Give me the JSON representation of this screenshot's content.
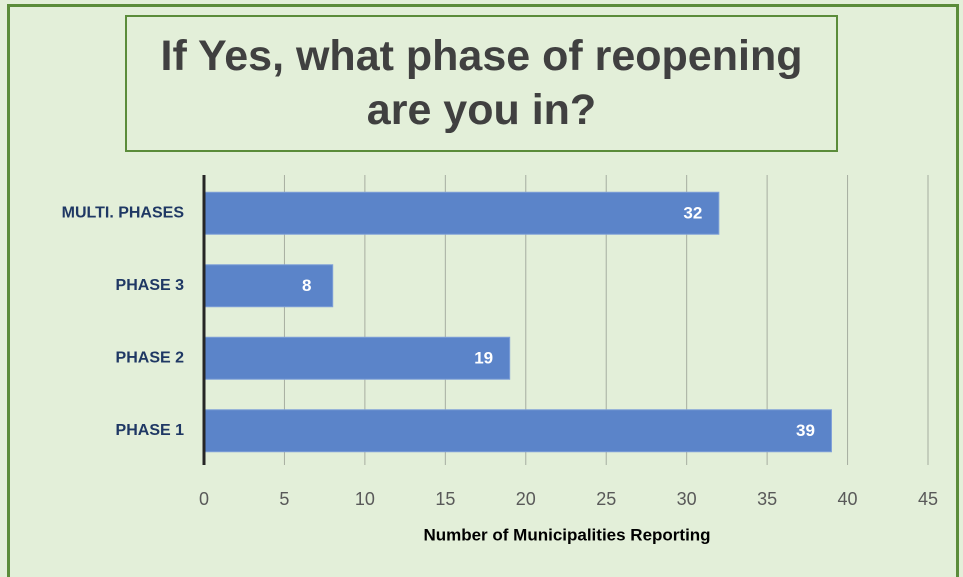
{
  "chart_data": {
    "type": "bar",
    "orientation": "horizontal",
    "title": "If Yes, what phase of reopening are you in?",
    "x_label": "Number of Municipalities Reporting",
    "categories": [
      "MULTI. PHASES",
      "PHASE 3",
      "PHASE 2",
      "PHASE 1"
    ],
    "values": [
      32,
      8,
      19,
      39
    ],
    "color": "#5b84c9",
    "xlim": [
      0,
      45
    ],
    "xticks": [
      0,
      5,
      10,
      15,
      20,
      25,
      30,
      35,
      40,
      45
    ],
    "grid": true
  }
}
